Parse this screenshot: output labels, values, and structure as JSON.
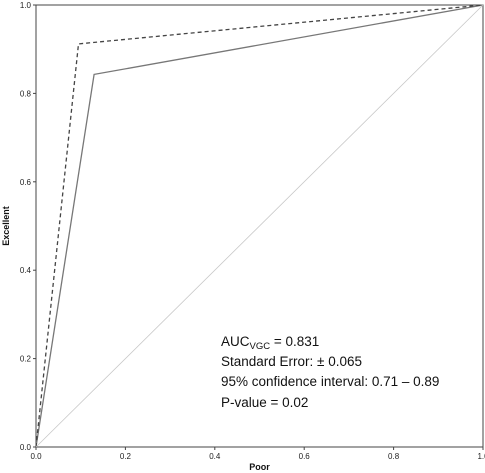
{
  "chart_data": {
    "type": "line",
    "xlabel": "Poor",
    "ylabel": "Excellent",
    "xlim": [
      0,
      1
    ],
    "ylim": [
      0,
      1
    ],
    "x_ticks": [
      "0.0",
      "0.2",
      "0.4",
      "0.6",
      "0.8",
      "1.0"
    ],
    "y_ticks": [
      "0.0",
      "0.2",
      "0.4",
      "0.6",
      "0.8",
      "1.0"
    ],
    "grid": false,
    "series": [
      {
        "style": "solid",
        "color": "#777777",
        "x": [
          0.0,
          0.13,
          1.0
        ],
        "y": [
          0.0,
          0.843,
          1.0
        ]
      },
      {
        "style": "dashed",
        "color": "#444444",
        "x": [
          0.0,
          0.095,
          1.0
        ],
        "y": [
          0.0,
          0.912,
          1.0
        ]
      },
      {
        "style": "reference",
        "color": "#c8c8c8",
        "x": [
          0.0,
          1.0
        ],
        "y": [
          0.0,
          1.0
        ]
      }
    ],
    "annotations": {
      "auc_label": "AUC",
      "auc_subscript": "VGC",
      "auc_value": " = 0.831",
      "standard_error": "Standard Error: ± 0.065",
      "confidence_interval": "95% confidence interval: 0.71 – 0.89",
      "p_value": "P-value = 0.02"
    }
  }
}
